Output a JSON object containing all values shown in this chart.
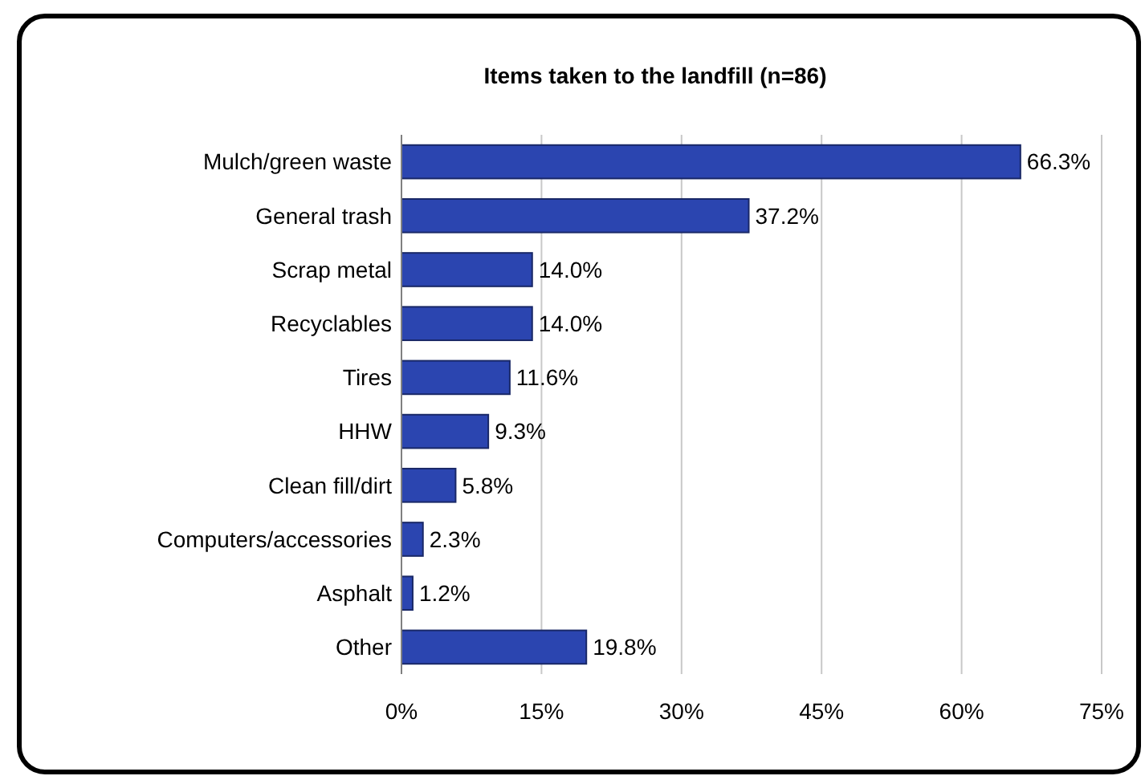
{
  "chart_data": {
    "type": "bar",
    "orientation": "horizontal",
    "title": "Items taken to the landfill (n=86)",
    "categories": [
      "Mulch/green waste",
      "General trash",
      "Scrap metal",
      "Recyclables",
      "Tires",
      "HHW",
      "Clean fill/dirt",
      "Computers/accessories",
      "Asphalt",
      "Other"
    ],
    "values": [
      66.3,
      37.2,
      14.0,
      14.0,
      11.6,
      9.3,
      5.8,
      2.3,
      1.2,
      19.8
    ],
    "value_labels": [
      "66.3%",
      "37.2%",
      "14.0%",
      "14.0%",
      "11.6%",
      "9.3%",
      "5.8%",
      "2.3%",
      "1.2%",
      "19.8%"
    ],
    "color": "#2b45b0",
    "xlim": [
      0,
      75
    ],
    "xticks": [
      {
        "value": 0,
        "label": "0%"
      },
      {
        "value": 15,
        "label": "15%"
      },
      {
        "value": 30,
        "label": "30%"
      },
      {
        "value": 45,
        "label": "45%"
      },
      {
        "value": 60,
        "label": "60%"
      },
      {
        "value": 75,
        "label": "75%"
      }
    ],
    "grid": "x"
  }
}
